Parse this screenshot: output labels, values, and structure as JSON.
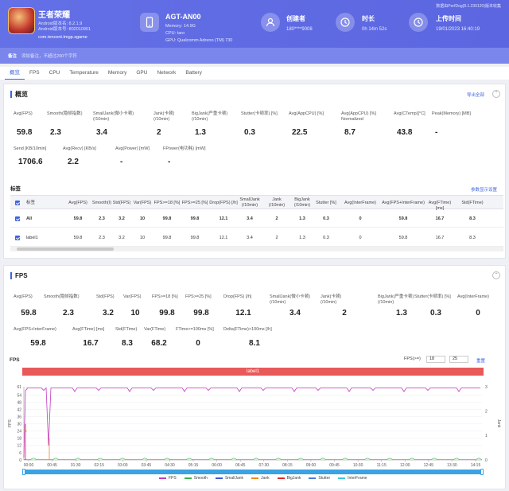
{
  "header": {
    "app_name": "王者荣耀",
    "android_version": "Android版本名: 8.2.1.9",
    "android_code": "Android版本号: 802010901",
    "package": "com.tencent.tmgp.sgame",
    "device_name": "AGT-AN00",
    "memory": "Memory: 14.9G",
    "cpu": "CPU: taro",
    "gpu": "GPU: Qualcomm Adreno (TM) 730",
    "creator_label": "创建者",
    "creator_value": "180****9008",
    "duration_label": "时长",
    "duration_value": "0h 14m 52s",
    "upload_label": "上传时间",
    "upload_value": "19/01/2023 16:40:19",
    "perfdog_version": "数据由PerfDog(8.1.230120)版本收集",
    "icons": {
      "device": "phone-icon",
      "creator": "user-icon",
      "duration": "clock-icon",
      "upload": "clock-history-icon"
    }
  },
  "note": {
    "label": "备注",
    "placeholder": "添加备注，不超过200个字符"
  },
  "tabs": [
    "概览",
    "FPS",
    "CPU",
    "Temperature",
    "Memory",
    "GPU",
    "Network",
    "Battery"
  ],
  "overview": {
    "title": "概览",
    "export_all": "导出全部",
    "metrics_row1": [
      {
        "label": "Avg(FPS)",
        "value": "59.8"
      },
      {
        "label": "Smooth(隐帧指数)",
        "value": "2.3"
      },
      {
        "label": "SmallJank(微小卡顿)\n(/10min)",
        "value": "3.4"
      },
      {
        "label": "Jank(卡顿)\n(/10min)",
        "value": "2"
      },
      {
        "label": "BigJank(严重卡顿)\n(/10min)",
        "value": "1.3"
      },
      {
        "label": "Stutter(卡顿率) [%]",
        "value": "0.3"
      },
      {
        "label": "Avg(AppCPU) [%]",
        "value": "22.5"
      },
      {
        "label": "Avg(AppCPU) [%]\nNormalized",
        "value": "8.7"
      },
      {
        "label": "Avg(CTemp)[°C]",
        "value": "43.8"
      },
      {
        "label": "Peak(Memory) [MB]",
        "value": "-"
      }
    ],
    "metrics_row2": [
      {
        "label": "Send [KB/10min]",
        "value": "1706.6"
      },
      {
        "label": "Avg(Recv) [KB/s]",
        "value": "2.2"
      },
      {
        "label": "Avg(Power) [mW]",
        "value": "-"
      },
      {
        "label": "FPower(电功耗) [mW]",
        "value": "-"
      }
    ],
    "label_section": "标签",
    "param_settings": "参数显示设置",
    "table_headers": [
      "标签",
      "Avg(FPS)",
      "Smooth(I)",
      "Std(FPS)",
      "Var(FPS)",
      "FPS>=18 [%]",
      "FPS>=25 [%]",
      "Drop(FPS) [/h]",
      "SmallJank\n(/10min)",
      "Jank\n(/10min)",
      "BigJank\n(/10min)",
      "Stutter [%]",
      "Avg(InterFrame)",
      "Avg(FPS+InterFrame)",
      "Avg(FTime) [ms]",
      "Std(FTime)"
    ],
    "table_rows": [
      [
        "All",
        "59.8",
        "2.3",
        "3.2",
        "10",
        "99.8",
        "99.8",
        "12.1",
        "3.4",
        "2",
        "1.3",
        "0.3",
        "0",
        "59.8",
        "16.7",
        "8.3"
      ],
      [
        "label1",
        "59.8",
        "2.3",
        "3.2",
        "10",
        "99.8",
        "99.8",
        "12.1",
        "3.4",
        "2",
        "1.3",
        "0.3",
        "0",
        "59.8",
        "16.7",
        "8.3"
      ]
    ]
  },
  "fps_card": {
    "title": "FPS",
    "metrics_row1": [
      {
        "label": "Avg(FPS)",
        "value": "59.8"
      },
      {
        "label": "Smooth(隐帧指数)",
        "value": "2.3"
      },
      {
        "label": "Std(FPS)",
        "value": "3.2"
      },
      {
        "label": "Var(FPS)",
        "value": "10"
      },
      {
        "label": "FPS>=18 [%]",
        "value": "99.8"
      },
      {
        "label": "FPS>=25 [%]",
        "value": "99.8"
      },
      {
        "label": "Drop(FPS) [/h]",
        "value": "12.1"
      },
      {
        "label": "SmallJank(微小卡顿)\n(/10min)",
        "value": "3.4"
      },
      {
        "label": "Jank(卡顿)\n(/10min)",
        "value": "2"
      },
      {
        "label": "BigJank(严重卡顿)\n(/10min)",
        "value": "1.3"
      },
      {
        "label": "Stutter(卡顿率) [%]",
        "value": "0.3"
      },
      {
        "label": "Avg(InterFrame)",
        "value": "0"
      }
    ],
    "metrics_row2": [
      {
        "label": "Avg(FPS+InterFrame)",
        "value": "59.8"
      },
      {
        "label": "Avg(FTime) [ms]",
        "value": "16.7"
      },
      {
        "label": "Std(FTime)",
        "value": "8.3"
      },
      {
        "label": "Var(FTime)",
        "value": "68.2"
      },
      {
        "label": "FTime>=100ms [%]",
        "value": "0"
      },
      {
        "label": "Delta(FTime)>100ms [/h]",
        "value": "8.1"
      }
    ],
    "chart_label": "FPS",
    "fps_filter_label": "FPS(>=)",
    "fps_filter_low": "18",
    "fps_filter_high": "25",
    "reset": "重置",
    "label_bar": "label1"
  },
  "chart_data": {
    "type": "line",
    "title": "FPS",
    "ylabel": "FPS",
    "y2label": "Jank",
    "yticks": [
      "0",
      "6",
      "12",
      "18",
      "24",
      "30",
      "36",
      "42",
      "48",
      "54",
      "61"
    ],
    "y2ticks": [
      "0",
      "1",
      "2",
      "3"
    ],
    "xticks": [
      "00:00",
      "00:45",
      "01:30",
      "02:15",
      "03:00",
      "03:45",
      "04:30",
      "05:15",
      "06:00",
      "06:45",
      "07:30",
      "08:15",
      "09:00",
      "09:45",
      "10:30",
      "11:15",
      "12:00",
      "12:45",
      "13:30",
      "14:15"
    ],
    "ylim": [
      0,
      61
    ],
    "y2lim": [
      0,
      3
    ],
    "series": [
      {
        "name": "FPS",
        "color": "#c23bc0"
      },
      {
        "name": "Smooth",
        "color": "#3bb34a"
      },
      {
        "name": "SmallJank",
        "color": "#3f57d6"
      },
      {
        "name": "Jank",
        "color": "#f08a1c"
      },
      {
        "name": "BigJank",
        "color": "#e02a2a"
      },
      {
        "name": "Stutter",
        "color": "#4a7be0"
      },
      {
        "name": "InterFrame",
        "color": "#3fc7d8"
      }
    ],
    "fps_typical": 60
  }
}
